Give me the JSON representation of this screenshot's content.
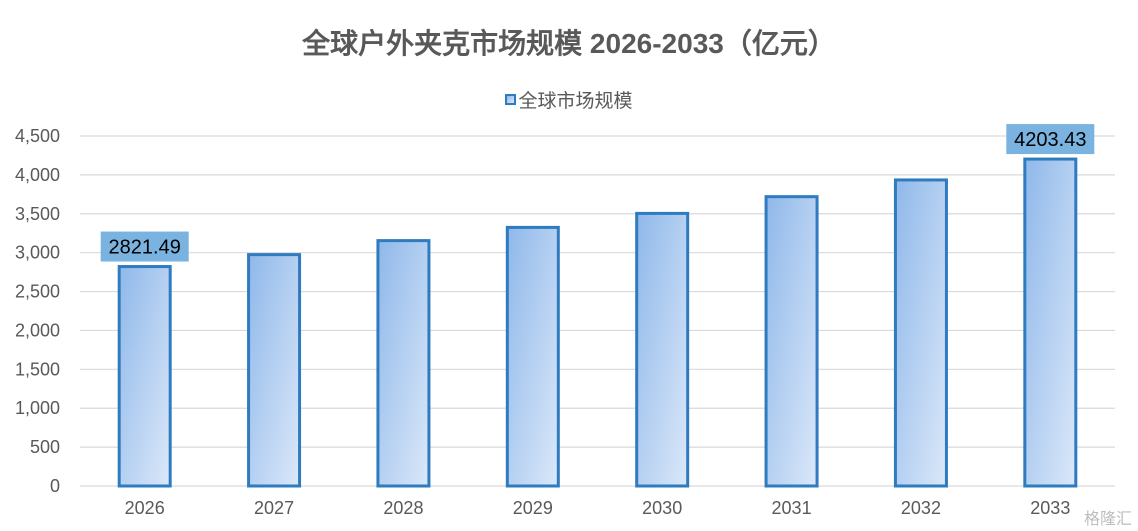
{
  "chart_data": {
    "type": "bar",
    "title": "全球户外夹克市场规模 2026-2033（亿元）",
    "legend": {
      "position": "top",
      "entries": [
        "全球市场规模"
      ]
    },
    "categories": [
      "2026",
      "2027",
      "2028",
      "2029",
      "2030",
      "2031",
      "2032",
      "2033"
    ],
    "series": [
      {
        "name": "全球市场规模",
        "values": [
          2821.49,
          2975,
          3155,
          3325,
          3505,
          3720,
          3935,
          4203.43
        ]
      }
    ],
    "data_labels": [
      {
        "category": "2026",
        "text": "2821.49"
      },
      {
        "category": "2033",
        "text": "4203.43"
      }
    ],
    "y_ticks": [
      "0",
      "500",
      "1,000",
      "1,500",
      "2,000",
      "2,500",
      "3,000",
      "3,500",
      "4,000",
      "4,500"
    ],
    "ylim": [
      0,
      4500
    ],
    "grid": true,
    "colors": {
      "bar_border": "#2f7bbf",
      "bar_fill_top": "#8fb8ea",
      "bar_fill_bottom": "#dbe8f9",
      "label_bg": "#7ab3e0",
      "grid": "#d9d9d9"
    }
  },
  "watermark": "格隆汇"
}
